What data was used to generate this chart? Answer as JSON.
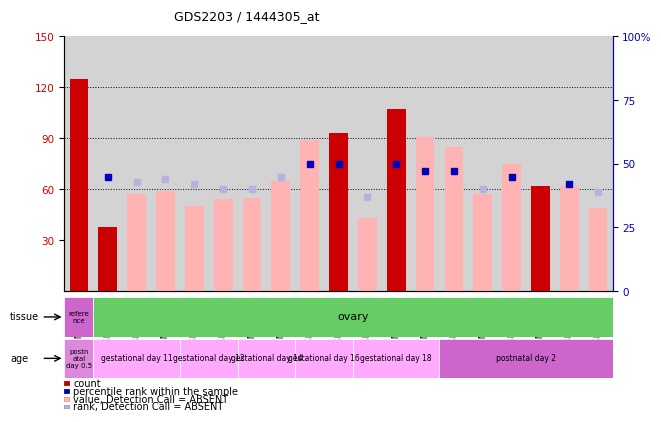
{
  "title": "GDS2203 / 1444305_at",
  "samples": [
    "GSM120857",
    "GSM120854",
    "GSM120855",
    "GSM120856",
    "GSM120851",
    "GSM120852",
    "GSM120853",
    "GSM120848",
    "GSM120849",
    "GSM120850",
    "GSM120845",
    "GSM120846",
    "GSM120847",
    "GSM120842",
    "GSM120843",
    "GSM120844",
    "GSM120839",
    "GSM120840",
    "GSM120841"
  ],
  "count_values": [
    125,
    38,
    null,
    null,
    null,
    null,
    null,
    null,
    null,
    93,
    null,
    107,
    null,
    null,
    null,
    null,
    62,
    null,
    null
  ],
  "count_absent_values": [
    null,
    null,
    57,
    59,
    50,
    54,
    55,
    65,
    89,
    null,
    43,
    null,
    91,
    85,
    57,
    75,
    null,
    62,
    49
  ],
  "rank_values": [
    null,
    45,
    null,
    null,
    null,
    null,
    null,
    null,
    50,
    50,
    null,
    50,
    47,
    47,
    null,
    45,
    null,
    42,
    null
  ],
  "rank_absent_values": [
    null,
    null,
    43,
    44,
    42,
    40,
    40,
    45,
    null,
    null,
    37,
    null,
    null,
    null,
    40,
    null,
    null,
    null,
    39
  ],
  "ylim_left": [
    0,
    150
  ],
  "ylim_right": [
    0,
    100
  ],
  "yticks_left": [
    30,
    60,
    90,
    120,
    150
  ],
  "yticks_right": [
    0,
    25,
    50,
    75,
    100
  ],
  "hlines": [
    60,
    90,
    120
  ],
  "count_color": "#cc0000",
  "count_absent_color": "#ffb3b3",
  "rank_color": "#0000bb",
  "rank_absent_color": "#b3b3dd",
  "bg_color": "#d3d3d3",
  "tissue_ref_label": "refere\nnce",
  "tissue_ref_color": "#cc66cc",
  "tissue_ovary_label": "ovary",
  "tissue_ovary_color": "#66cc66",
  "age_groups": [
    {
      "label": "postn\natal\nday 0.5",
      "color": "#dd88dd",
      "span": 1
    },
    {
      "label": "gestational day 11",
      "color": "#ffaaff",
      "span": 3
    },
    {
      "label": "gestational day 12",
      "color": "#ffaaff",
      "span": 2
    },
    {
      "label": "gestational day 14",
      "color": "#ffaaff",
      "span": 2
    },
    {
      "label": "gestational day 16",
      "color": "#ffaaff",
      "span": 2
    },
    {
      "label": "gestational day 18",
      "color": "#ffaaff",
      "span": 3
    },
    {
      "label": "postnatal day 2",
      "color": "#cc66cc",
      "span": 6
    }
  ],
  "legend_items": [
    {
      "label": "count",
      "color": "#cc0000"
    },
    {
      "label": "percentile rank within the sample",
      "color": "#0000bb"
    },
    {
      "label": "value, Detection Call = ABSENT",
      "color": "#ffb3b3"
    },
    {
      "label": "rank, Detection Call = ABSENT",
      "color": "#b3b3dd"
    }
  ]
}
